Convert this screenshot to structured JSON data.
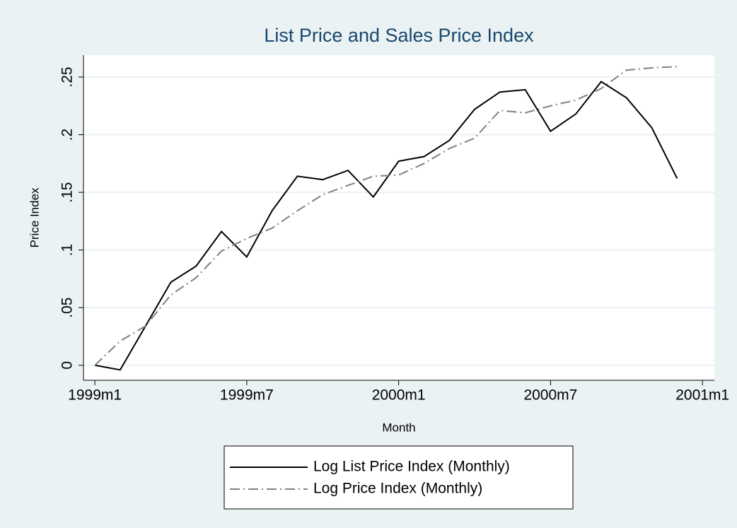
{
  "chart_data": {
    "type": "line",
    "title": "List Price and Sales Price Index",
    "x_label": "Month",
    "y_label": "Price Index",
    "x": [
      468,
      469,
      470,
      471,
      472,
      473,
      474,
      475,
      476,
      477,
      478,
      479,
      480,
      481,
      482,
      483,
      484,
      485,
      486,
      487,
      488,
      489,
      490,
      491
    ],
    "series": [
      {
        "name": "Log List Price Index (Monthly)",
        "color": "#000000",
        "dash": "solid",
        "values": [
          0,
          -0.004,
          0.034,
          0.072,
          0.086,
          0.116,
          0.094,
          0.134,
          0.164,
          0.161,
          0.169,
          0.146,
          0.177,
          0.181,
          0.195,
          0.222,
          0.237,
          0.239,
          0.203,
          0.218,
          0.246,
          0.232,
          0.206,
          0.162
        ]
      },
      {
        "name": "Log Price Index (Monthly)",
        "color": "#808080",
        "dash": "longdash-dot",
        "values": [
          0,
          0.021,
          0.034,
          0.061,
          0.076,
          0.099,
          0.11,
          0.119,
          0.134,
          0.148,
          0.156,
          0.164,
          0.165,
          0.175,
          0.188,
          0.197,
          0.221,
          0.219,
          0.225,
          0.23,
          0.24,
          0.256,
          0.258,
          0.259
        ]
      }
    ],
    "xlim": [
      467.55,
      492.47
    ],
    "xticks": [
      {
        "value": 468,
        "label": "1999m1"
      },
      {
        "value": 474,
        "label": "1999m7"
      },
      {
        "value": 480,
        "label": "2000m1"
      },
      {
        "value": 486,
        "label": "2000m7"
      },
      {
        "value": 492,
        "label": "2001m1"
      }
    ],
    "ylim": [
      -0.013,
      0.269
    ],
    "yticks": [
      0,
      {
        "value": 0.05,
        "label": ".05"
      },
      {
        "value": 0.1,
        "label": ".1"
      },
      {
        "value": 0.15,
        "label": ".15"
      },
      {
        "value": 0.2,
        "label": ".2"
      },
      {
        "value": 0.25,
        "label": ".25"
      }
    ],
    "grid": true,
    "legend": "bottom"
  }
}
